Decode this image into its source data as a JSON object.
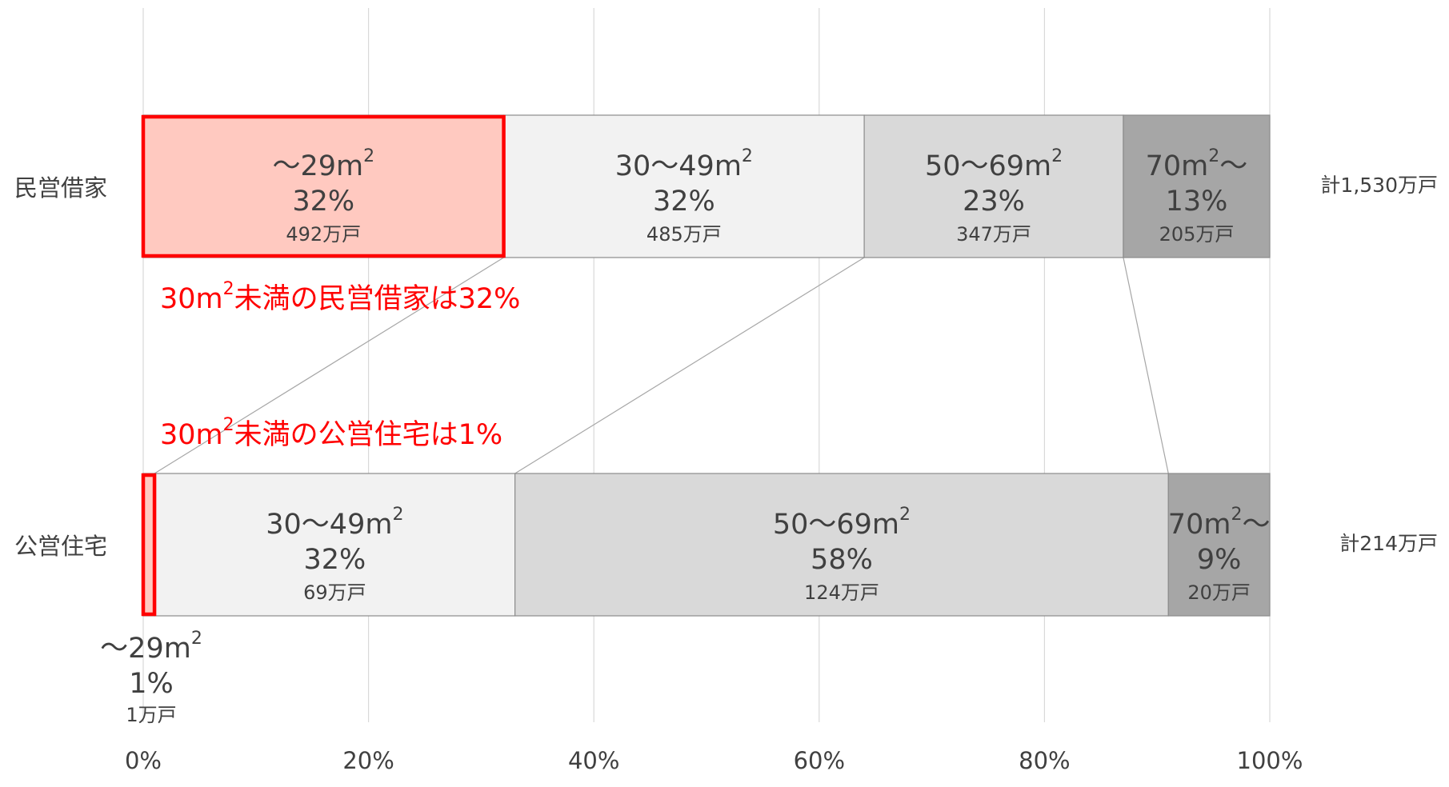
{
  "chart_data": {
    "type": "bar",
    "orientation": "horizontal",
    "stacked": "percent",
    "categories": [
      "民営借家",
      "公営住宅"
    ],
    "x_ticks": [
      "0%",
      "20%",
      "40%",
      "60%",
      "80%",
      "100%"
    ],
    "xlim": [
      0,
      100
    ],
    "grid": true,
    "segments": [
      {
        "label": "～29m2",
        "label_base": "～29m",
        "label_sup": "2",
        "label_suffix": "",
        "fill": "#ffc9c0",
        "values": [
          32,
          1
        ],
        "value_labels": [
          "32%",
          "1%"
        ],
        "count_labels": [
          "492万戸",
          "1万戸"
        ]
      },
      {
        "label": "30～49m2",
        "label_base": "30～49m",
        "label_sup": "2",
        "label_suffix": "",
        "fill": "#f2f2f2",
        "values": [
          32,
          32
        ],
        "value_labels": [
          "32%",
          "32%"
        ],
        "count_labels": [
          "485万戸",
          "69万戸"
        ]
      },
      {
        "label": "50～69m2",
        "label_base": "50～69m",
        "label_sup": "2",
        "label_suffix": "",
        "fill": "#d9d9d9",
        "values": [
          23,
          58
        ],
        "value_labels": [
          "23%",
          "58%"
        ],
        "count_labels": [
          "347万戸",
          "124万戸"
        ]
      },
      {
        "label": "70m2～",
        "label_base": "70m",
        "label_sup": "2",
        "label_suffix": "～",
        "fill": "#a6a6a6",
        "values": [
          13,
          9
        ],
        "value_labels": [
          "13%",
          "9%"
        ],
        "count_labels": [
          "205万戸",
          "20万戸"
        ]
      }
    ],
    "totals": [
      "計1,530万戸",
      "計214万戸"
    ],
    "annotations": [
      {
        "text_pre": "30m",
        "text_sup": "2",
        "text_post": "未満の民営借家は32%",
        "color": "#ff0000"
      },
      {
        "text_pre": "30m",
        "text_sup": "2",
        "text_post": "未満の公営住宅は1%",
        "color": "#ff0000"
      }
    ],
    "highlight_color": "#ff0000"
  }
}
